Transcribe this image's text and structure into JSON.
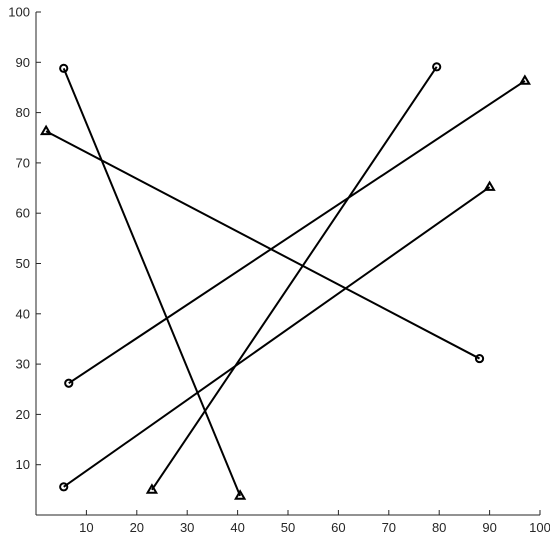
{
  "chart_data": {
    "type": "line",
    "title": "",
    "xlabel": "",
    "ylabel": "",
    "xlim": [
      0,
      100
    ],
    "ylim": [
      0,
      100
    ],
    "x_ticks": [
      10,
      20,
      30,
      40,
      50,
      60,
      70,
      80,
      90,
      100
    ],
    "y_ticks": [
      10,
      20,
      30,
      40,
      50,
      60,
      70,
      80,
      90,
      100
    ],
    "x_tick_labels": [
      "10",
      "20",
      "30",
      "40",
      "50",
      "60",
      "70",
      "80",
      "90",
      "100"
    ],
    "y_tick_labels": [
      "10",
      "20",
      "30",
      "40",
      "50",
      "60",
      "70",
      "80",
      "90",
      "100"
    ],
    "grid": false,
    "line_color": "#000000",
    "series": [
      {
        "start_marker": "circle",
        "end_marker": "triangle",
        "x": [
          5.5,
          40.5
        ],
        "y": [
          88.8,
          3.8
        ]
      },
      {
        "start_marker": "circle",
        "end_marker": "triangle",
        "x": [
          6.5,
          97
        ],
        "y": [
          26.2,
          86.3
        ]
      },
      {
        "start_marker": "triangle",
        "end_marker": "circle",
        "x": [
          2,
          88
        ],
        "y": [
          76.3,
          31.1
        ]
      },
      {
        "start_marker": "circle",
        "end_marker": "triangle",
        "x": [
          5.5,
          90
        ],
        "y": [
          5.6,
          65.2
        ]
      },
      {
        "start_marker": "circle",
        "end_marker": "triangle",
        "x": [
          79.5,
          23
        ],
        "y": [
          89.1,
          5
        ]
      }
    ]
  }
}
